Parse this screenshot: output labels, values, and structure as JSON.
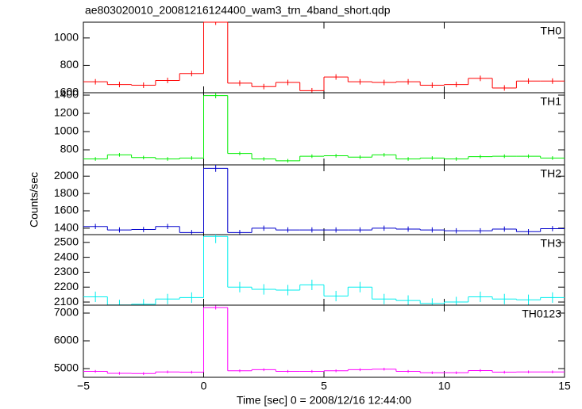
{
  "chart_data": {
    "type": "step",
    "title": "ae803020010_20081216124400_wam3_trn_4band_short.qdp",
    "x_label": "Time [sec] 0 = 2008/12/16 12:44:00",
    "y_label": "Counts/sec",
    "xlim": [
      -5,
      15
    ],
    "xticks": [
      {
        "value": -5,
        "label": "−5"
      },
      0,
      5,
      10,
      15
    ],
    "x": [
      -4.5,
      -3.5,
      -2.5,
      -1.5,
      -0.5,
      0.5,
      1.5,
      2.5,
      3.5,
      4.5,
      5.5,
      6.5,
      7.5,
      8.5,
      9.5,
      10.5,
      11.5,
      12.5,
      13.5,
      14.5
    ],
    "bin_width": 1,
    "panels": [
      {
        "name": "TH0",
        "color": "#ff0000",
        "ylim": [
          600,
          1115
        ],
        "yticks": [
          600,
          800,
          1000
        ],
        "values": [
          680,
          660,
          655,
          690,
          740,
          1120,
          670,
          645,
          675,
          615,
          715,
          680,
          675,
          680,
          655,
          660,
          705,
          635,
          685,
          685
        ],
        "errors": [
          20,
          20,
          20,
          20,
          20,
          25,
          20,
          20,
          20,
          20,
          20,
          20,
          20,
          20,
          20,
          20,
          20,
          20,
          20,
          20
        ]
      },
      {
        "name": "TH1",
        "color": "#00ee00",
        "ylim": [
          635,
          1426
        ],
        "yticks": [
          800,
          1000,
          1200,
          1400
        ],
        "values": [
          700,
          745,
          715,
          700,
          710,
          1395,
          760,
          700,
          680,
          730,
          735,
          720,
          745,
          700,
          710,
          700,
          725,
          730,
          730,
          710
        ],
        "errors": [
          20,
          20,
          20,
          20,
          20,
          30,
          20,
          20,
          20,
          20,
          20,
          20,
          20,
          20,
          20,
          20,
          20,
          20,
          20,
          20
        ]
      },
      {
        "name": "TH2",
        "color": "#0000cc",
        "ylim": [
          1326,
          2130
        ],
        "yticks": [
          1400,
          1600,
          1800,
          2000
        ],
        "values": [
          1420,
          1380,
          1385,
          1420,
          1350,
          2090,
          1350,
          1400,
          1380,
          1380,
          1380,
          1380,
          1400,
          1390,
          1380,
          1370,
          1370,
          1390,
          1360,
          1395
        ],
        "errors": [
          30,
          30,
          30,
          30,
          30,
          40,
          30,
          30,
          30,
          30,
          30,
          30,
          30,
          30,
          30,
          30,
          30,
          30,
          30,
          30
        ]
      },
      {
        "name": "TH3",
        "color": "#00eeee",
        "ylim": [
          2079,
          2552
        ],
        "yticks": [
          2100,
          2200,
          2300,
          2400,
          2500
        ],
        "values": [
          2135,
          2080,
          2085,
          2120,
          2130,
          2540,
          2200,
          2185,
          2180,
          2215,
          2140,
          2200,
          2120,
          2110,
          2090,
          2100,
          2135,
          2120,
          2115,
          2130
        ],
        "errors": [
          35,
          35,
          35,
          35,
          35,
          45,
          35,
          35,
          35,
          35,
          35,
          35,
          35,
          35,
          35,
          35,
          35,
          35,
          35,
          35
        ]
      },
      {
        "name": "TH0123",
        "color": "#ff00ff",
        "ylim": [
          4686,
          7286
        ],
        "yticks": [
          5000,
          6000,
          7000
        ],
        "values": [
          4900,
          4830,
          4820,
          4880,
          4870,
          7200,
          4920,
          4960,
          4900,
          4900,
          4920,
          4960,
          4980,
          4900,
          4850,
          4850,
          4930,
          4870,
          4880,
          4880
        ],
        "errors": [
          50,
          50,
          50,
          50,
          50,
          70,
          50,
          50,
          50,
          50,
          50,
          50,
          50,
          50,
          50,
          50,
          50,
          50,
          50,
          50
        ]
      }
    ]
  }
}
